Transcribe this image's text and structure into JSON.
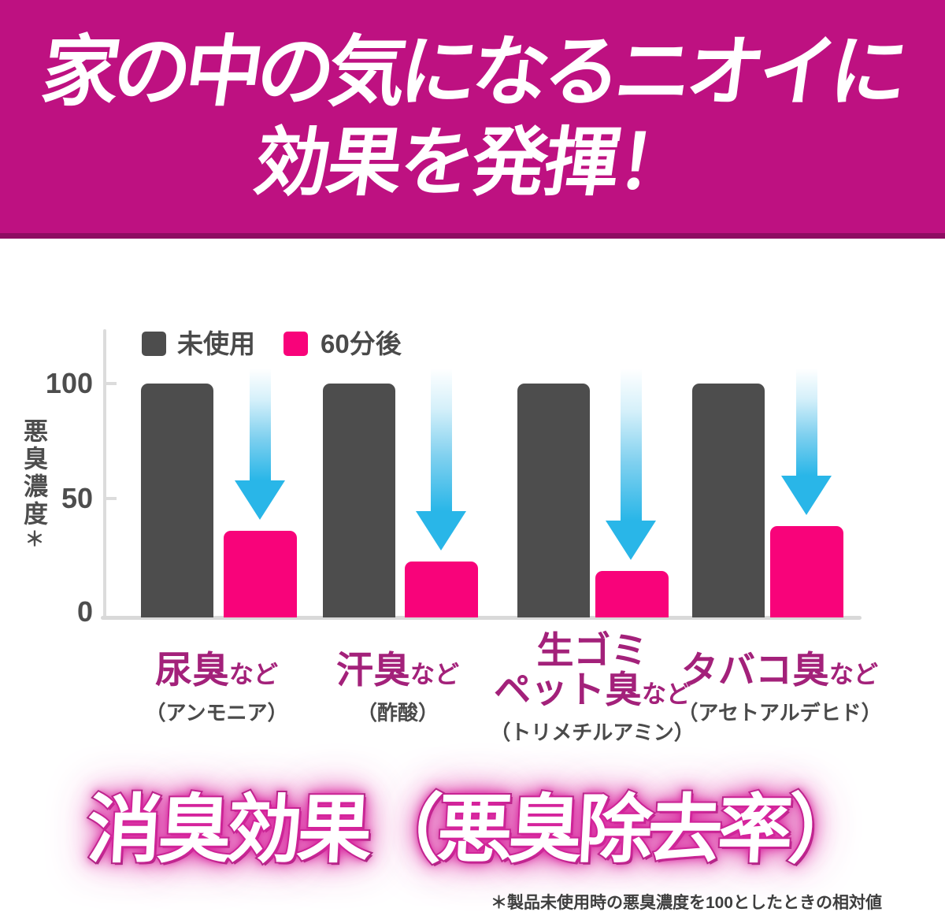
{
  "banner": {
    "line1": "家の中の気になるニオイに",
    "line2": "効果を発揮！"
  },
  "chart_data": {
    "type": "bar",
    "title": "",
    "ylabel": "悪臭濃度",
    "ylabel_note": "＊",
    "ylim": [
      0,
      100
    ],
    "yticks": [
      "100",
      "50",
      "0"
    ],
    "grid": false,
    "legend_position": "top-left",
    "legend": [
      {
        "label": "未使用",
        "color": "#4D4D4D"
      },
      {
        "label": "60分後",
        "color": "#F8037A"
      }
    ],
    "categories": [
      {
        "top": "",
        "main": "尿臭",
        "suffix": "など",
        "sub": "（アンモニア）"
      },
      {
        "top": "",
        "main": "汗臭",
        "suffix": "など",
        "sub": "（酢酸）"
      },
      {
        "top": "生ゴミ",
        "main": "ペット臭",
        "suffix": "など",
        "sub": "（トリメチルアミン）"
      },
      {
        "top": "",
        "main": "タバコ臭",
        "suffix": "など",
        "sub": "（アセトアルデヒド）"
      }
    ],
    "series": [
      {
        "name": "未使用",
        "color": "#4D4D4D",
        "values": [
          100,
          100,
          100,
          100
        ]
      },
      {
        "name": "60分後",
        "color": "#F8037A",
        "values": [
          37,
          24,
          20,
          39
        ]
      }
    ]
  },
  "footer": {
    "headline": "消臭効果（悪臭除去率）",
    "footnote": "＊製品未使用時の悪臭濃度を100としたときの相対値"
  },
  "colors": {
    "banner_bg": "#BE1181",
    "banner_edge": "#8E0D62",
    "bar_unused": "#4D4D4D",
    "bar_after": "#F8037A",
    "arrow_cyan": "#29B6E8",
    "category_label": "#A3217A",
    "axis_gray": "#D9D9D9",
    "text_gray": "#4A4A4A",
    "headline_fill": "#FFFFFF",
    "headline_outline": "#8A2A6E",
    "headline_glow": "#D6219C"
  }
}
